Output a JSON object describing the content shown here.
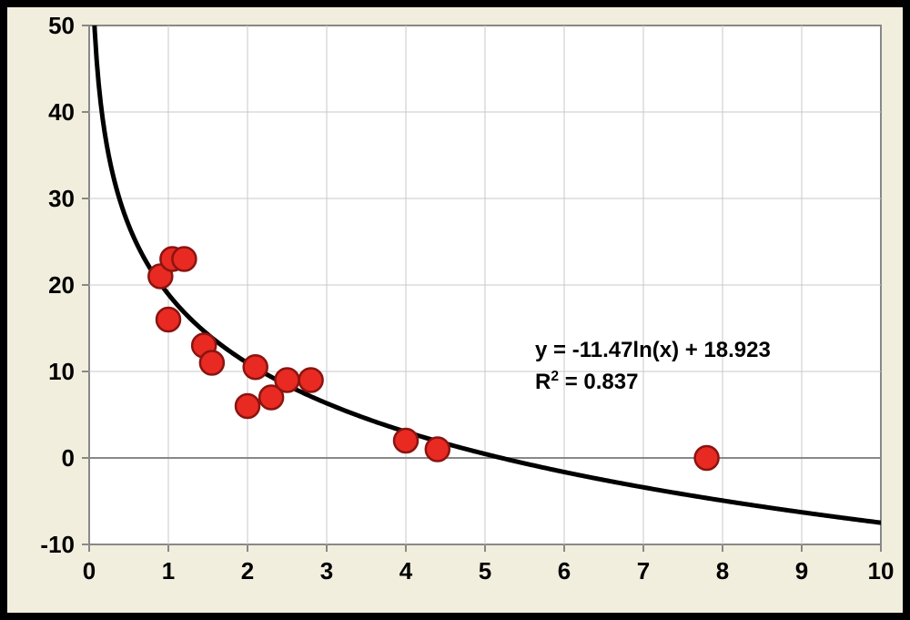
{
  "chart": {
    "type": "scatter-with-fit",
    "background_color": "#f2eedd",
    "outer_border_color": "#000000",
    "outer_border_width": 8,
    "plot_background": "#ffffff",
    "plot_border_color": "#888888",
    "plot_border_width": 2,
    "grid_color": "#c9c9c9",
    "grid_width": 1,
    "axis_zero_line_color": "#888888",
    "xlim": [
      0,
      10
    ],
    "ylim": [
      -10,
      50
    ],
    "xtick_step": 1,
    "ytick_step": 10,
    "xticks": [
      0,
      1,
      2,
      3,
      4,
      5,
      6,
      7,
      8,
      9,
      10
    ],
    "yticks": [
      -10,
      0,
      10,
      20,
      30,
      40,
      50
    ],
    "tick_font_size": 26,
    "tick_font_weight": "bold",
    "tick_color": "#000000",
    "marker": {
      "shape": "circle",
      "radius": 13,
      "fill": "#e82a22",
      "stroke": "#8a1410",
      "stroke_width": 2.5
    },
    "fit_line": {
      "color": "#000000",
      "width": 5,
      "formula_a": -11.47,
      "formula_b": 18.923
    },
    "points": [
      {
        "x": 0.9,
        "y": 21.0
      },
      {
        "x": 1.05,
        "y": 23.0
      },
      {
        "x": 1.2,
        "y": 23.0
      },
      {
        "x": 1.0,
        "y": 16.0
      },
      {
        "x": 1.45,
        "y": 13.0
      },
      {
        "x": 1.55,
        "y": 11.0
      },
      {
        "x": 2.0,
        "y": 6.0
      },
      {
        "x": 2.1,
        "y": 10.5
      },
      {
        "x": 2.3,
        "y": 7.0
      },
      {
        "x": 2.5,
        "y": 9.0
      },
      {
        "x": 2.8,
        "y": 9.0
      },
      {
        "x": 4.0,
        "y": 2.0
      },
      {
        "x": 4.4,
        "y": 1.0
      },
      {
        "x": 7.8,
        "y": 0.0
      }
    ],
    "equation": {
      "line1_prefix": "y = -11.47ln(x) + 18.923",
      "line2_prefix": "R",
      "line2_sup": "2",
      "line2_suffix": " = 0.837",
      "font_size": 24,
      "font_weight": "bold",
      "color": "#000000"
    }
  }
}
